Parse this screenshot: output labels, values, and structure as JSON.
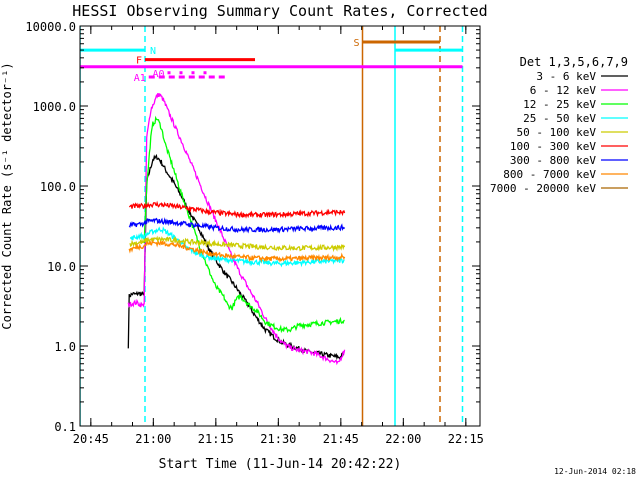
{
  "chart_data": {
    "type": "line",
    "title": "HESSI Observing Summary Count Rates, Corrected",
    "xlabel": "Start Time (11-Jun-14 20:42:22)",
    "ylabel": "Corrected Count Rate (s⁻¹ detector⁻¹)",
    "footer": "12-Jun-2014 02:18",
    "x_units": "minutes after 11-Jun-14 20:42:22",
    "xlim": [
      0,
      96
    ],
    "ylim": [
      0.1,
      10000
    ],
    "yscale": "log",
    "x_ticks": [
      {
        "x": 2.6,
        "label": "20:45"
      },
      {
        "x": 17.6,
        "label": "21:00"
      },
      {
        "x": 32.6,
        "label": "21:15"
      },
      {
        "x": 47.6,
        "label": "21:30"
      },
      {
        "x": 62.6,
        "label": "21:45"
      },
      {
        "x": 77.6,
        "label": "22:00"
      },
      {
        "x": 92.6,
        "label": "22:15"
      }
    ],
    "y_ticks": [
      {
        "y": 0.1,
        "label": "0.1"
      },
      {
        "y": 1,
        "label": "1.0"
      },
      {
        "y": 10,
        "label": "10.0"
      },
      {
        "y": 100,
        "label": "100.0"
      },
      {
        "y": 1000,
        "label": "1000.0"
      },
      {
        "y": 10000,
        "label": "10000.0"
      }
    ],
    "legend_title": "Det 1,3,5,6,7,9",
    "legend_position": "right",
    "series": [
      {
        "name": "3 - 6 keV",
        "color": "#000000",
        "x": [
          11.6,
          11.8,
          12.6,
          13.5,
          14.0,
          14.3,
          15.1,
          15.4,
          16.0,
          16.5,
          17.5,
          18.5,
          19.5,
          20.5,
          22.5,
          24.5,
          26.5,
          28.5,
          30.5,
          32.5,
          34.5,
          36.5,
          38.5,
          40.5,
          42.5,
          44.5,
          46.5,
          48.5,
          50.5,
          52.5,
          54.5,
          56.5,
          58.5,
          60.5,
          62.5,
          63.5
        ],
        "y": [
          1.0,
          4.2,
          4.5,
          4.4,
          4.6,
          4.5,
          4.4,
          4.7,
          110,
          140,
          215,
          230,
          200,
          160,
          110,
          72,
          45,
          30,
          18,
          12,
          8.5,
          6.3,
          4.5,
          3.2,
          2.2,
          1.6,
          1.3,
          1.1,
          1.0,
          0.93,
          0.85,
          0.82,
          0.78,
          0.75,
          0.72,
          0.85
        ]
      },
      {
        "name": "6 - 12 keV",
        "color": "#ff00ff",
        "x": [
          11.6,
          12.6,
          13.5,
          14.4,
          15.1,
          15.4,
          16.0,
          17.0,
          18.5,
          19.0,
          20.0,
          21.0,
          22.5,
          24.5,
          26.5,
          28.5,
          30.5,
          32.5,
          34.5,
          36.5,
          38.5,
          40.5,
          42.5,
          44.5,
          46.5,
          48.5,
          50.5,
          52.5,
          54.5,
          56.5,
          58.5,
          60.5,
          62.0,
          63.5
        ],
        "y": [
          3.3,
          3.4,
          3.5,
          3.3,
          3.2,
          3.5,
          400,
          900,
          1350,
          1400,
          1200,
          900,
          600,
          350,
          200,
          115,
          65,
          38,
          22,
          13,
          8,
          5.2,
          3.5,
          2.2,
          1.5,
          1.1,
          0.95,
          0.88,
          0.85,
          0.8,
          0.72,
          0.65,
          0.6,
          0.9
        ]
      },
      {
        "name": "12 - 25 keV",
        "color": "#00ff00",
        "x": [
          15.4,
          16.0,
          17.0,
          17.5,
          18.5,
          19.5,
          20.5,
          22.5,
          24.5,
          26.5,
          28.5,
          30.5,
          32.5,
          34.5,
          35.5,
          36.5,
          37.5,
          38.5,
          40.5,
          42.5,
          44.5,
          46.5,
          48.5,
          50.5,
          52.5,
          54.5,
          56.5,
          58.5,
          60.5,
          62.5,
          63.5
        ],
        "y": [
          20,
          100,
          400,
          600,
          700,
          540,
          330,
          160,
          75,
          38,
          19,
          10,
          5.6,
          4.1,
          3.2,
          3.0,
          3.8,
          4.2,
          3.3,
          2.7,
          2.0,
          1.75,
          1.6,
          1.6,
          1.8,
          1.85,
          1.9,
          1.95,
          2.0,
          2.05,
          2.1
        ]
      },
      {
        "name": "25 - 50 keV",
        "color": "#00ffff",
        "x": [
          12.0,
          13.5,
          14.5,
          15.4,
          16.0,
          17.5,
          18.5,
          19.5,
          20.5,
          21.5,
          22.5,
          23.5,
          24.5,
          25.5,
          26.5,
          28.5,
          30.5,
          32.5,
          34.5,
          36.5,
          38.5,
          40.5,
          42.5,
          44.5,
          46.5,
          48.5,
          50.5,
          52.5,
          54.5,
          56.5,
          58.5,
          60.5,
          62.5,
          63.5
        ],
        "y": [
          22,
          23,
          24,
          23,
          25,
          27,
          28,
          29,
          27,
          25,
          23,
          21,
          19,
          17,
          16,
          14,
          13,
          12.5,
          12,
          11.8,
          11.5,
          11.3,
          11.2,
          11.0,
          10.8,
          10.8,
          10.9,
          11.0,
          11.2,
          11.3,
          11.4,
          11.5,
          11.7,
          11.8
        ]
      },
      {
        "name": "50 - 100 keV",
        "color": "#cccc00",
        "x": [
          12.0,
          14.0,
          15.4,
          16.0,
          18.0,
          20.0,
          22.5,
          24.5,
          26.5,
          28.5,
          30.5,
          32.5,
          34.5,
          36.5,
          38.5,
          40.5,
          42.5,
          44.5,
          46.5,
          48.5,
          50.5,
          52.5,
          54.5,
          56.5,
          58.5,
          60.5,
          62.5,
          63.5
        ],
        "y": [
          19,
          19.5,
          20,
          21,
          21.5,
          21.5,
          21,
          20.5,
          20,
          19.6,
          19.2,
          18.9,
          18.5,
          18.2,
          17.9,
          17.6,
          17.4,
          17.2,
          17.0,
          16.9,
          16.8,
          16.7,
          16.8,
          16.9,
          17.0,
          17.1,
          17.2,
          17.3
        ]
      },
      {
        "name": "100 - 300 keV",
        "color": "#ff0000",
        "x": [
          11.8,
          13.5,
          15.4,
          16.0,
          18.0,
          20.0,
          22.5,
          24.5,
          26.5,
          28.5,
          30.5,
          32.5,
          34.5,
          36.5,
          38.5,
          40.5,
          42.5,
          44.5,
          46.5,
          48.5,
          50.5,
          52.5,
          54.5,
          56.5,
          58.5,
          60.5,
          62.5,
          63.5
        ],
        "y": [
          55,
          56,
          56,
          58,
          59,
          58,
          56,
          54,
          52,
          50,
          48,
          46.5,
          45.5,
          44.5,
          44,
          43.5,
          43.5,
          43.5,
          44,
          44,
          44.5,
          45,
          45.5,
          46,
          46.5,
          47,
          47,
          46
        ]
      },
      {
        "name": "300 - 800 keV",
        "color": "#0000ff",
        "x": [
          11.8,
          13.5,
          15.4,
          16.0,
          18.0,
          20.0,
          22.5,
          24.5,
          26.5,
          28.5,
          30.5,
          32.5,
          34.5,
          36.5,
          38.5,
          40.5,
          42.5,
          44.5,
          46.5,
          48.5,
          50.5,
          52.5,
          54.5,
          56.5,
          58.5,
          60.5,
          62.5,
          63.5
        ],
        "y": [
          32,
          33,
          34,
          36,
          37,
          36,
          35,
          34,
          33,
          32,
          31,
          30,
          29.5,
          29,
          28.5,
          28.5,
          28.5,
          28.5,
          28.5,
          28.8,
          29,
          29.2,
          29.4,
          29.6,
          29.8,
          30,
          30.2,
          30.3
        ]
      },
      {
        "name": "800 - 7000 keV",
        "color": "#ff8800",
        "x": [
          11.8,
          13.5,
          15.4,
          16.0,
          18.0,
          20.0,
          22.5,
          24.5,
          26.5,
          28.5,
          30.5,
          32.5,
          34.5,
          36.5,
          38.5,
          40.5,
          42.5,
          44.5,
          46.5,
          48.5,
          50.5,
          52.5,
          54.5,
          56.5,
          58.5,
          60.5,
          62.5,
          63.5
        ],
        "y": [
          16,
          17,
          18,
          19,
          19.5,
          19.2,
          18.5,
          17.5,
          16.5,
          15.5,
          14.6,
          14.0,
          13.5,
          13.2,
          12.9,
          12.7,
          12.5,
          12.4,
          12.3,
          12.3,
          12.3,
          12.4,
          12.5,
          12.6,
          12.7,
          12.8,
          12.9,
          13.0
        ]
      },
      {
        "name": "7000 - 20000 keV",
        "color": "#aa6600",
        "x": [],
        "y": []
      }
    ],
    "annotations": {
      "lines": [
        {
          "x": 0.0,
          "color": "#00ffff",
          "style": "solid"
        },
        {
          "x": 15.6,
          "color": "#00ffff",
          "style": "dashed"
        },
        {
          "x": 67.8,
          "color": "#cc6600",
          "style": "solid"
        },
        {
          "x": 75.6,
          "color": "#00ffff",
          "style": "solid"
        },
        {
          "x": 86.4,
          "color": "#cc6600",
          "style": "dashed"
        },
        {
          "x": 91.8,
          "color": "#00ffff",
          "style": "dashed"
        }
      ],
      "bars": [
        {
          "label": "",
          "color": "#00ffff",
          "x0": 0,
          "x1": 15.6,
          "y": 5000,
          "style": "solid"
        },
        {
          "label": "N",
          "color": "#00ffff",
          "x0": 15.6,
          "x1": 15.6,
          "y": 5000,
          "style": "solid"
        },
        {
          "label": "",
          "color": "#00ffff",
          "x0": 75.6,
          "x1": 91.8,
          "y": 5000,
          "style": "solid"
        },
        {
          "label": "S",
          "color": "#cc6600",
          "x0": 67.8,
          "x1": 86.4,
          "y": 6300,
          "style": "solid"
        },
        {
          "label": "F",
          "color": "#ff0000",
          "x0": 15.6,
          "x1": 42.0,
          "y": 3800,
          "style": "solid"
        },
        {
          "label": "",
          "color": "#ff00ff",
          "x0": 0,
          "x1": 91.8,
          "y": 3100,
          "style": "solid"
        },
        {
          "label": "A0",
          "color": "#ff00ff",
          "x0": 21.0,
          "x1": 31.0,
          "y": 2600,
          "style": "dotted"
        },
        {
          "label": "A1",
          "color": "#ff00ff",
          "x0": 16.5,
          "x1": 35.5,
          "y": 2300,
          "style": "dashed"
        }
      ]
    }
  }
}
